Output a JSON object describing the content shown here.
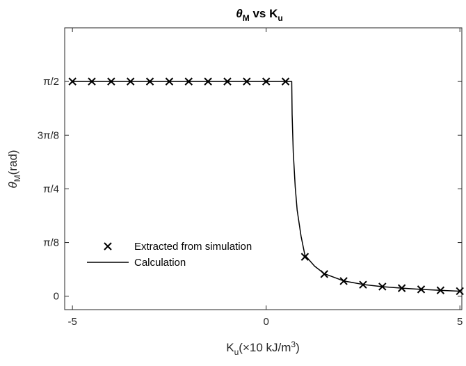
{
  "chart_data": {
    "type": "line",
    "title": {
      "main": "θ",
      "main_sub": "M",
      "mid": " vs K",
      "mid_sub": "u"
    },
    "xlabel": {
      "main": "K",
      "main_sub": "u",
      "rest": "(×10 kJ/m",
      "sup": "3",
      "end": ")"
    },
    "ylabel": {
      "main": "θ",
      "main_sub": "M",
      "rest": "(rad)"
    },
    "xlim": [
      -5.2,
      5.05
    ],
    "ylim": [
      -0.0982,
      1.9635
    ],
    "xticks": [
      {
        "value": -5,
        "label": "-5"
      },
      {
        "value": 0,
        "label": "0"
      },
      {
        "value": 5,
        "label": "5"
      }
    ],
    "yticks": [
      {
        "value": 0,
        "label": "0"
      },
      {
        "value": 0.3927,
        "label": "π/8"
      },
      {
        "value": 0.7854,
        "label": "π/4"
      },
      {
        "value": 1.1781,
        "label": "3π/8"
      },
      {
        "value": 1.5708,
        "label": "π/2"
      }
    ],
    "grid": false,
    "legend_position": "lower-left",
    "series": [
      {
        "name": "Extracted from simulation",
        "style": "markers",
        "marker": "x",
        "color": "#000000",
        "x": [
          -5,
          -4.5,
          -4,
          -3.5,
          -3,
          -2.5,
          -2,
          -1.5,
          -1,
          -0.5,
          0,
          0.5,
          1,
          1.5,
          2,
          2.5,
          3,
          3.5,
          4,
          4.5,
          5
        ],
        "y": [
          1.5708,
          1.5708,
          1.5708,
          1.5708,
          1.5708,
          1.5708,
          1.5708,
          1.5708,
          1.5708,
          1.5708,
          1.5708,
          1.5708,
          0.288,
          0.162,
          0.111,
          0.084,
          0.07,
          0.059,
          0.05,
          0.043,
          0.037
        ]
      },
      {
        "name": "Calculation",
        "style": "line",
        "color": "#000000",
        "x": [
          -5,
          0.66,
          0.67,
          0.7,
          0.75,
          0.8,
          0.9,
          1.0,
          1.25,
          1.5,
          2.0,
          2.5,
          3.0,
          3.5,
          4.0,
          4.5,
          5.0
        ],
        "y": [
          1.5708,
          1.5708,
          1.33,
          1.05,
          0.8,
          0.63,
          0.44,
          0.3,
          0.22,
          0.165,
          0.112,
          0.086,
          0.07,
          0.059,
          0.05,
          0.043,
          0.037
        ]
      }
    ]
  }
}
